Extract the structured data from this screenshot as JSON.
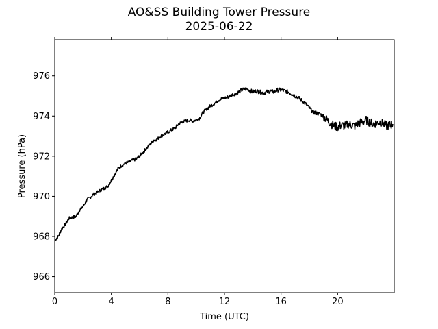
{
  "chart_data": {
    "type": "line",
    "title": "AO&SS Building Tower Pressure",
    "subtitle": "2025-06-22",
    "xlabel": "Time (UTC)",
    "ylabel": "Pressure (hPa)",
    "xlim": [
      0,
      24
    ],
    "ylim": [
      965.2,
      977.8
    ],
    "xticks": [
      0,
      4,
      8,
      12,
      16,
      20
    ],
    "yticks": [
      966,
      968,
      970,
      972,
      974,
      976
    ],
    "grid": false,
    "legend": "none",
    "line_color": "#000000",
    "series": [
      {
        "x": [
          0.0,
          0.25,
          0.5,
          0.75,
          1.0,
          1.25,
          1.5,
          1.75,
          2.0,
          2.25,
          2.5,
          2.75,
          3.0,
          3.25,
          3.5,
          3.75,
          4.0,
          4.25,
          4.5,
          4.75,
          5.0,
          5.25,
          5.5,
          5.75,
          6.0,
          6.25,
          6.5,
          6.75,
          7.0,
          7.25,
          7.5,
          7.75,
          8.0,
          8.25,
          8.5,
          8.75,
          9.0,
          9.25,
          9.5,
          9.75,
          10.0,
          10.25,
          10.5,
          10.75,
          11.0,
          11.25,
          11.5,
          11.75,
          12.0,
          12.25,
          12.5,
          12.75,
          13.0,
          13.25,
          13.5,
          13.75,
          14.0,
          14.25,
          14.5,
          14.75,
          15.0,
          15.25,
          15.5,
          15.75,
          16.0,
          16.25,
          16.5,
          16.75,
          17.0,
          17.25,
          17.5,
          17.75,
          18.0,
          18.25,
          18.5,
          18.75,
          19.0,
          19.25,
          19.5,
          19.75,
          20.0,
          20.25,
          20.5,
          20.75,
          21.0,
          21.25,
          21.5,
          21.75,
          22.0,
          22.25,
          22.5,
          22.75,
          23.0,
          23.25,
          23.5,
          23.75,
          23.9
        ],
        "y": [
          967.8,
          968.0,
          968.4,
          968.6,
          968.9,
          968.95,
          969.0,
          969.3,
          969.5,
          969.8,
          969.95,
          970.1,
          970.2,
          970.3,
          970.4,
          970.5,
          970.8,
          971.1,
          971.4,
          971.55,
          971.65,
          971.7,
          971.8,
          971.85,
          972.0,
          972.2,
          972.4,
          972.6,
          972.8,
          972.85,
          973.0,
          973.1,
          973.2,
          973.3,
          973.4,
          973.6,
          973.7,
          973.75,
          973.8,
          973.75,
          973.8,
          973.9,
          974.2,
          974.35,
          974.5,
          974.6,
          974.75,
          974.85,
          974.9,
          974.95,
          975.05,
          975.1,
          975.2,
          975.3,
          975.35,
          975.3,
          975.2,
          975.25,
          975.2,
          975.15,
          975.2,
          975.25,
          975.2,
          975.3,
          975.3,
          975.25,
          975.2,
          975.1,
          975.0,
          974.9,
          974.75,
          974.6,
          974.4,
          974.2,
          974.15,
          974.1,
          974.0,
          973.8,
          973.65,
          973.5,
          973.45,
          973.55,
          973.5,
          973.6,
          973.55,
          973.5,
          973.65,
          973.7,
          973.8,
          973.7,
          973.6,
          973.65,
          973.7,
          973.6,
          973.5,
          973.55,
          973.6
        ]
      }
    ]
  }
}
